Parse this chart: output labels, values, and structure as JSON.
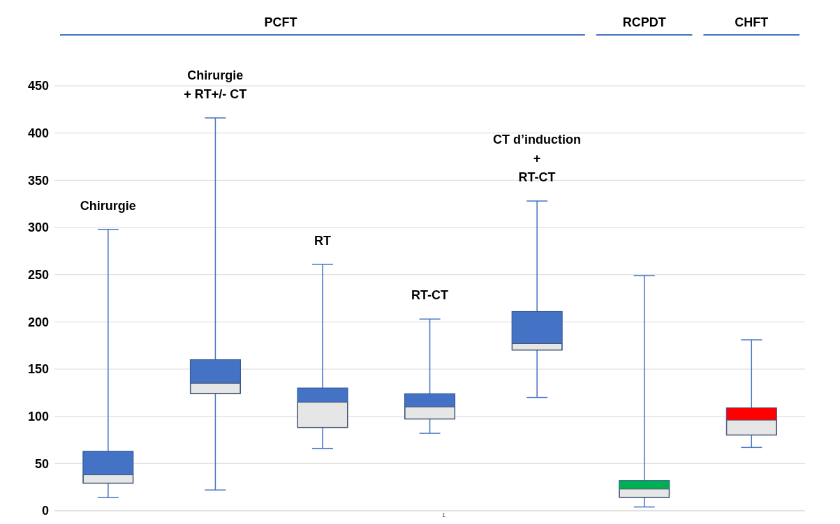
{
  "chart_data": {
    "type": "box",
    "categories": [
      "Chirurgie",
      "Chirurgie\n+ RT+/- CT",
      "RT",
      "RT-CT",
      "CT d’induction\n+\nRT-CT",
      null,
      null
    ],
    "boxes": [
      {
        "low": 14,
        "q1": 29,
        "median": 38,
        "q3": 63,
        "high": 298
      },
      {
        "low": 22,
        "q1": 124,
        "median": 135,
        "q3": 160,
        "high": 416
      },
      {
        "low": 66,
        "q1": 88,
        "median": 115,
        "q3": 130,
        "high": 261
      },
      {
        "low": 82,
        "q1": 97,
        "median": 110,
        "q3": 124,
        "high": 203
      },
      {
        "low": 120,
        "q1": 170,
        "median": 177,
        "q3": 211,
        "high": 328
      },
      {
        "low": 4,
        "q1": 14,
        "median": 23,
        "q3": 32,
        "high": 249
      },
      {
        "low": 67,
        "q1": 80,
        "median": 96,
        "q3": 109,
        "high": 181
      }
    ],
    "colors": [
      "#4472c4",
      "#4472c4",
      "#4472c4",
      "#4472c4",
      "#4472c4",
      "#00b050",
      "#ff0000"
    ],
    "ylim": [
      0,
      450
    ],
    "yticks": [
      0,
      50,
      100,
      150,
      200,
      250,
      300,
      350,
      400,
      450
    ],
    "grid": "y",
    "annotations": [
      "PCFT",
      "RCPDT",
      "CHFT",
      "1"
    ]
  }
}
